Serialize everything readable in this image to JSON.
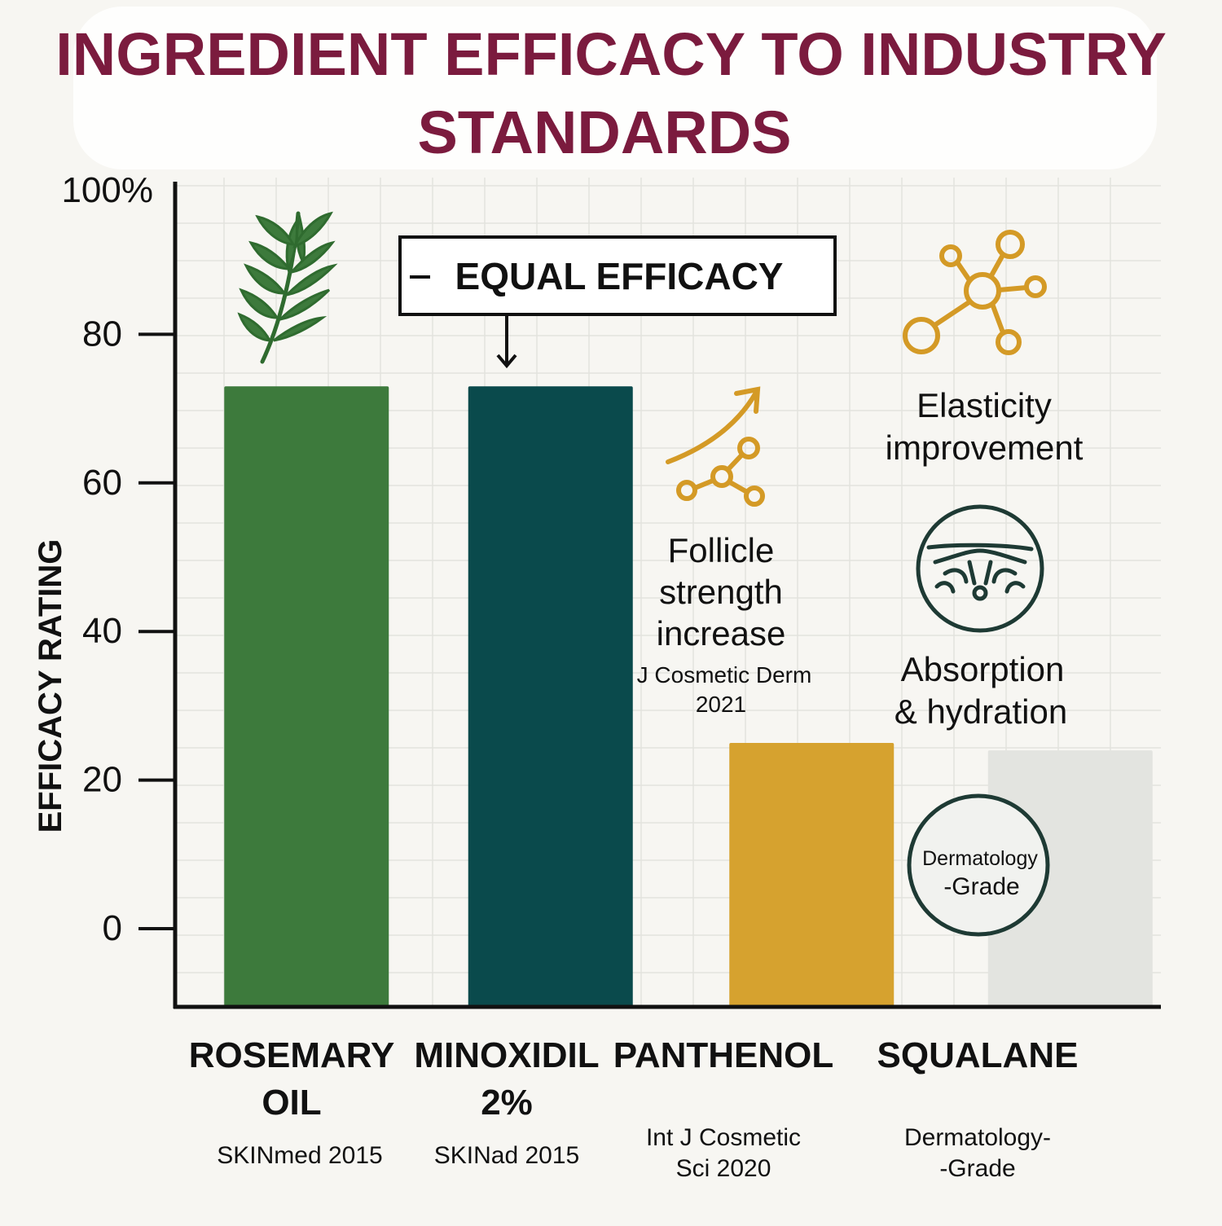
{
  "colors": {
    "background": "#f7f6f2",
    "title": "#7b1b3e",
    "rosemary": "#3d7a3c",
    "minoxidil": "#0a4a4c",
    "panthenol": "#d6a22f",
    "squalane": "#e3e4e0",
    "icon_gold": "#d49a26",
    "icon_dark": "#1e3a34",
    "axis": "#111111",
    "grid": "#e3e3de"
  },
  "chart_data": {
    "type": "bar",
    "title_lines": [
      "INGREDIENT EFFICACY TO INDUSTRY",
      "STANDARDS"
    ],
    "ylabel": "EFFICACY RATING",
    "ylim": [
      0,
      100
    ],
    "yticks": [
      {
        "value": 0,
        "label": "0"
      },
      {
        "value": 20,
        "label": "20"
      },
      {
        "value": 40,
        "label": "40"
      },
      {
        "value": 60,
        "label": "60"
      },
      {
        "value": 80,
        "label": "80"
      },
      {
        "value": 100,
        "label": "100%"
      }
    ],
    "categories": [
      {
        "label_lines": [
          "ROSEMARY",
          "OIL"
        ],
        "source_lines": [
          "SKINmed 2015"
        ],
        "value": 73,
        "color": "#3d7a3c"
      },
      {
        "label_lines": [
          "MINOXIDIL",
          "2%"
        ],
        "source_lines": [
          "SKINad 2015"
        ],
        "value": 73,
        "color": "#0a4a4c"
      },
      {
        "label_lines": [
          "PANTHENOL"
        ],
        "source_lines": [
          "Int J Cosmetic",
          "Sci 2020"
        ],
        "value": 25,
        "color": "#d6a22f"
      },
      {
        "label_lines": [
          "SQUALANE"
        ],
        "source_lines": [
          "Dermatology-",
          "-Grade"
        ],
        "value": 24,
        "color": "#e3e4e0"
      }
    ],
    "annotations": {
      "equal_efficacy": "EQUAL EFFICACY",
      "follicle": [
        "Follicle",
        "strength",
        "increase"
      ],
      "follicle_source": [
        "J Cosmetic Derm",
        "2021"
      ],
      "elasticity": [
        "Elasticity",
        "improvement"
      ],
      "absorption": [
        "Absorption",
        "& hydration"
      ],
      "badge": [
        "Dermatology",
        "-Grade"
      ]
    },
    "icons": [
      "rosemary-sprig-icon",
      "growth-arrow-icon",
      "molecule-icon",
      "skin-layer-icon"
    ],
    "grid": true
  }
}
